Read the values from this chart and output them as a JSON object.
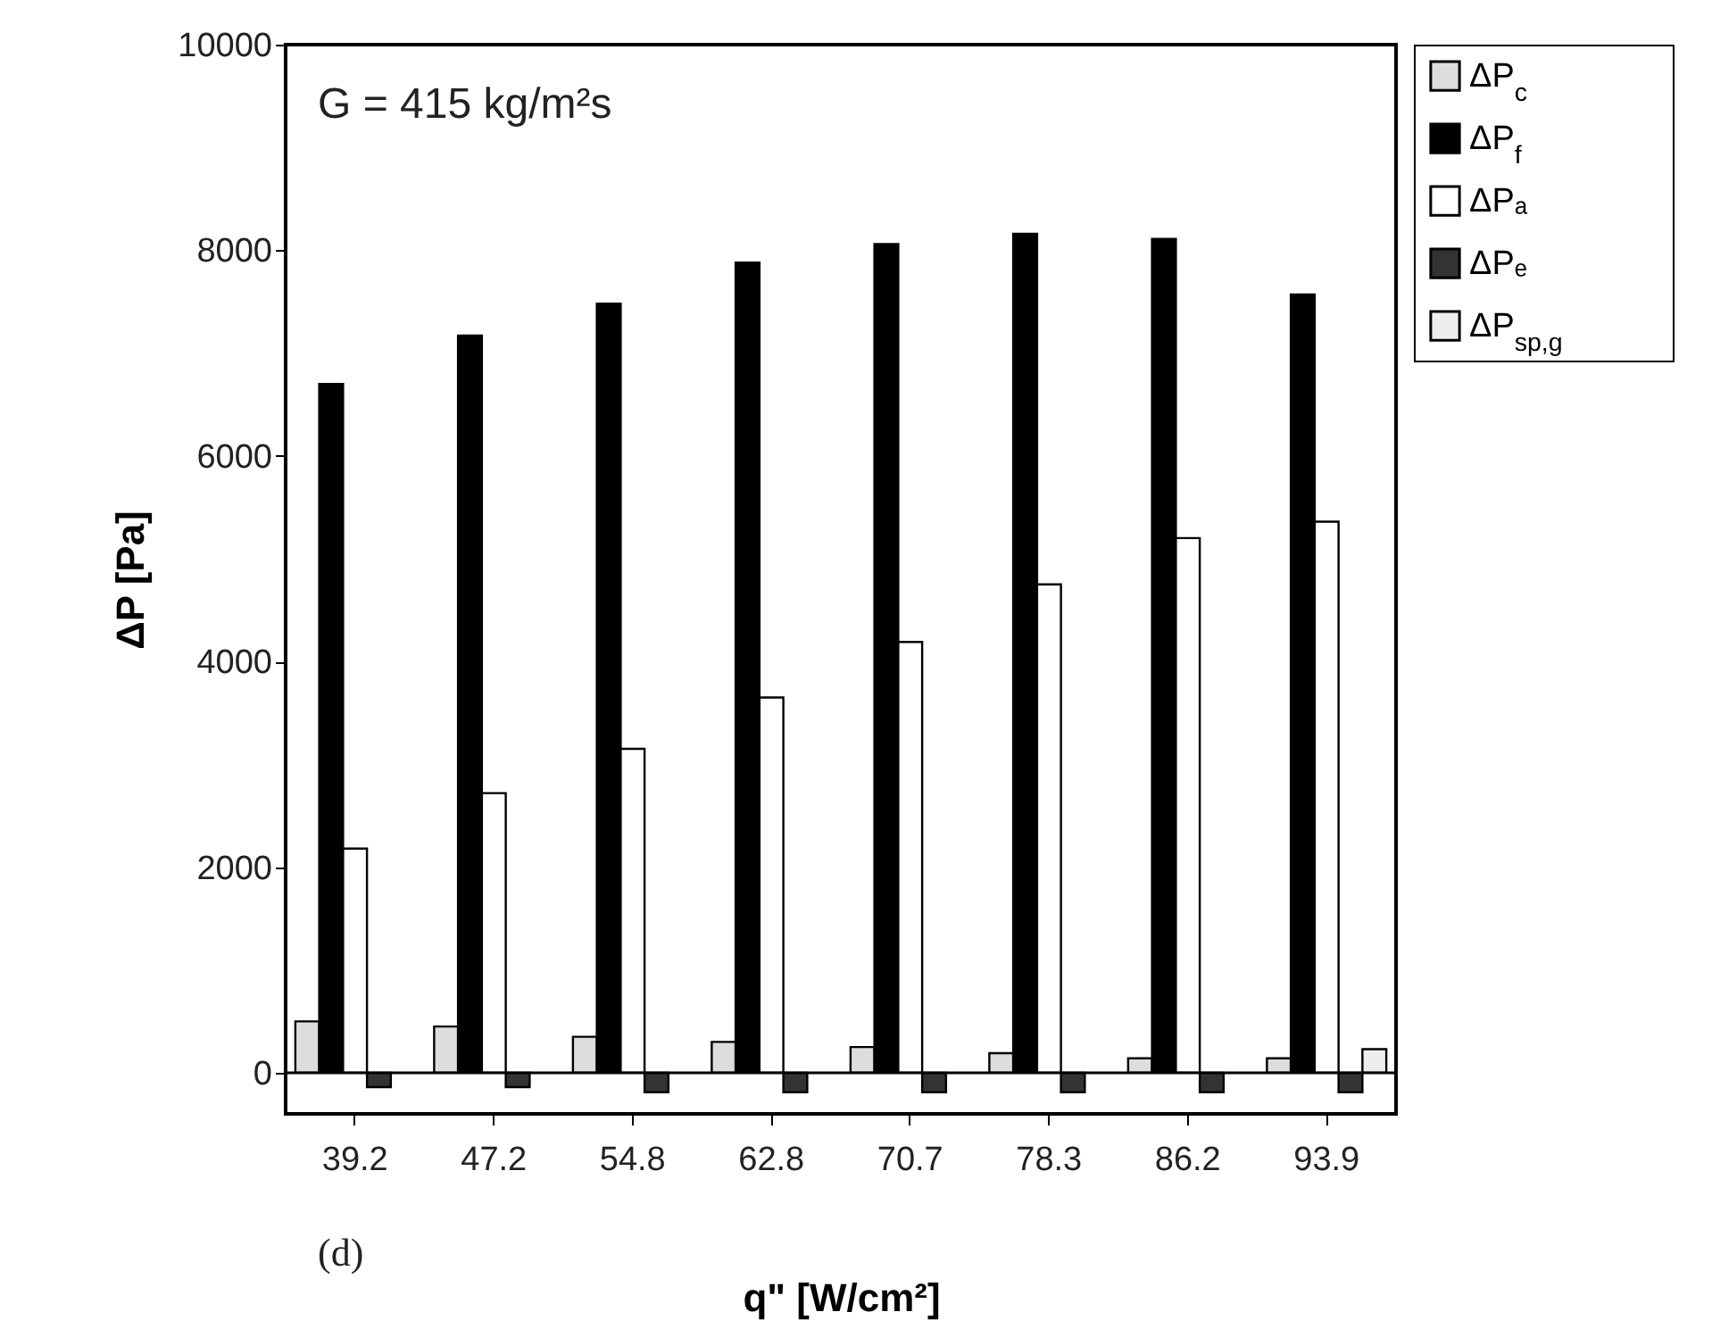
{
  "chart_data": {
    "type": "bar",
    "xlabel": "q\" [W/cm²]",
    "ylabel": "ΔP [Pa]",
    "categories": [
      "39.2",
      "47.2",
      "54.8",
      "62.8",
      "70.7",
      "78.3",
      "86.2",
      "93.9"
    ],
    "series": [
      {
        "name": "ΔP$_{c}$",
        "color": "#dddddd",
        "values": [
          500,
          450,
          350,
          300,
          250,
          190,
          140,
          140
        ]
      },
      {
        "name": "ΔP$_{f}$",
        "color": "#000000",
        "values": [
          6700,
          7170,
          7480,
          7880,
          8060,
          8160,
          8110,
          7570
        ]
      },
      {
        "name": "ΔPₐ",
        "color": "#ffffff",
        "values": [
          2180,
          2720,
          3150,
          3650,
          4190,
          4750,
          5200,
          5360
        ]
      },
      {
        "name": "ΔPₑ",
        "color": "#333333",
        "values": [
          -140,
          -140,
          -190,
          -190,
          -190,
          -190,
          -190,
          -190
        ]
      },
      {
        "name": "ΔP$_{sp,g}$",
        "color": "#eeeeee",
        "values": [
          null,
          null,
          null,
          null,
          null,
          null,
          null,
          230
        ]
      }
    ],
    "ylim": [
      -400,
      10000
    ],
    "yticks": [
      0,
      2000,
      4000,
      6000,
      8000,
      10000
    ],
    "ref_lines": [
      {
        "axis": "y",
        "value": 0
      }
    ],
    "annotations": [
      "G = 415 kg/m²s",
      "(d)"
    ],
    "legend": "top right",
    "grid": false
  }
}
